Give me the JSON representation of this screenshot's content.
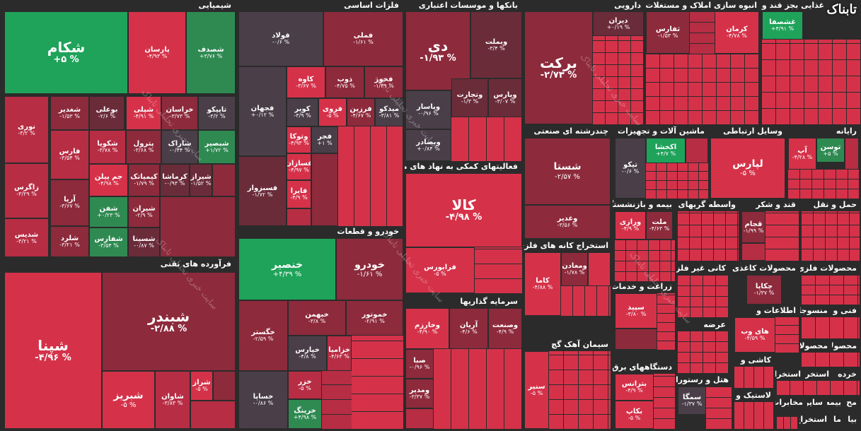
{
  "logo": "تابناک",
  "watermark": "سایت خبری تحلیلی تابناک",
  "sections": {
    "chemical": "شیمیایی",
    "oil": "فرآورده های نفتی",
    "metals": "فلزات اساسی",
    "auto": "خودرو و قطعات",
    "banks": "بانکها و موسسات اعتباری",
    "finance": "فعالیتهای کمکی به نهاد های مالی",
    "invest": "سرمایه گذاریها",
    "pharma": "دارویی",
    "engineering": "چندرشته ای صنعتی",
    "mining": "استخراج کانه های فلزی",
    "cement": "سیمان آهک گچ",
    "realestate": "انبوه سازی املاک و مستغلات",
    "machinery": "ماشین آلات و تجهیزات",
    "sugar": "غذایی بجز قند وشکر",
    "telecom": "وسایل ارتباطی",
    "computer": "رایانه",
    "insurance": "بیمه و بازنشستگی",
    "brokers": "واسطه گریهای مالی",
    "sugar2": "قند و شکر",
    "transport": "حمل و نقل",
    "agri": "زراعت و خدمات",
    "nonmetal": "کانی غیر فلزی",
    "paper": "محصولات کاغذی",
    "metalproducts": "محصولات فلزی",
    "electric": "دستگاههای برق",
    "tech": "فنی و",
    "info": "اطلاعات و",
    "textile": "منسوجات",
    "products": "محصولات",
    "products2": "محصولات",
    "offer": "عرضه",
    "hotel": "هتل و رستوران",
    "tile": "کاشی و",
    "rubber": "لاستیک و",
    "retail": "خرده",
    "ext1": "استخراج",
    "ext2": "استخراج",
    "other1": "سایر",
    "other2": "مخابرات",
    "other3": "مح",
    "other4": "بیمه",
    "other5": "ما",
    "other6": "بیا",
    "other7": "استخراج"
  },
  "tiles": {
    "shekam": {
      "name": "شکام",
      "value": "+۵ %"
    },
    "parsan": {
      "name": "پارسان",
      "value": "-۴/۹۳ %"
    },
    "shasaf": {
      "name": "شصدف",
      "value": "+۳/۷۶ %"
    },
    "nouri": {
      "name": "نوری",
      "value": "-۳/۲ %"
    },
    "shaghadir": {
      "name": "شغدیر",
      "value": "-۱/۵۳ %"
    },
    "buali": {
      "name": "بوعلی",
      "value": "-۲/۶ %"
    },
    "shapli": {
      "name": "شپلی",
      "value": "-۴/۹۱ %"
    },
    "khorasan": {
      "name": "خراسان",
      "value": "-۳/۷۳ %"
    },
    "tapiko": {
      "name": "تاپیکو",
      "value": "-۳/۲ %"
    },
    "fars": {
      "name": "فارس",
      "value": "-۳/۵۴ %"
    },
    "shakouya": {
      "name": "شکویا",
      "value": "-۳/۷۸ %"
    },
    "petrol": {
      "name": "پترول",
      "value": "-۳/۶۸ %"
    },
    "sharak": {
      "name": "شاراک",
      "value": "-۰/۴۴ %"
    },
    "shbesper": {
      "name": "شبصیر",
      "value": "+۱/۷۲ %"
    },
    "zagros": {
      "name": "زاگرس",
      "value": "-۳/۲۹ %"
    },
    "jampilan": {
      "name": "جم پیلن",
      "value": "-۴/۹۸ %"
    },
    "kemiyak": {
      "name": "کیمیاتک",
      "value": "-۱/۷۹ %"
    },
    "kermasha": {
      "name": "کرماشا",
      "value": "-۰/۹۳ %"
    },
    "shiraz": {
      "name": "شیراز",
      "value": "-۱/۵۲ %"
    },
    "arya": {
      "name": "آریا",
      "value": "-۳/۶۷ %"
    },
    "shafan": {
      "name": "شفن",
      "value": "+۰/۲۳ %"
    },
    "shiran": {
      "name": "شیران",
      "value": "-۲/۹ %"
    },
    "shedis": {
      "name": "شدیس",
      "value": "-۳/۲۱ %"
    },
    "sharad": {
      "name": "شلرد",
      "value": "-۳/۲۱ %"
    },
    "shafaras": {
      "name": "شفارس",
      "value": "-۳/۵۴ %"
    },
    "shesina": {
      "name": "شسینا",
      "value": "-۰/۸۷ %"
    },
    "shepna": {
      "name": "شپنا",
      "value": "-۴/۹۶ %"
    },
    "shabandar": {
      "name": "شبندر",
      "value": "-۲/۸۸ %"
    },
    "shabriz": {
      "name": "شبریز",
      "value": "-۵ %"
    },
    "shavan": {
      "name": "شاوان",
      "value": "-۳/۸۳ %"
    },
    "sheraz": {
      "name": "شراز",
      "value": "-۵ %"
    },
    "fouladh": {
      "name": "فولاد",
      "value": "-۰/۶ %"
    },
    "femeli": {
      "name": "فملی",
      "value": "-۱/۶۱ %"
    },
    "fajhan": {
      "name": "فجهان",
      "value": "+۰/۱۲ %"
    },
    "kave": {
      "name": "کاوه",
      "value": "-۳/۶۷ %"
    },
    "zob": {
      "name": "ذوب",
      "value": "-۴/۷۵ %"
    },
    "fekhouz": {
      "name": "فخوز",
      "value": "-۱/۳۹ %"
    },
    "kavir": {
      "name": "کویر",
      "value": "-۳/۹ %"
    },
    "farvi": {
      "name": "فروی",
      "value": "-۵ %"
    },
    "farzin": {
      "name": "فرزین",
      "value": "-۴/۶۷ %"
    },
    "midako": {
      "name": "میدکو",
      "value": "-۳/۸۱ %"
    },
    "vatouka": {
      "name": "وتوکا",
      "value": "-۴/۹۳ %"
    },
    "fajr": {
      "name": "فجر",
      "value": "+۱ %"
    },
    "fasazan": {
      "name": "فسازان",
      "value": "-۴/۹۷ %"
    },
    "fsabzevar": {
      "name": "فسبزوار",
      "value": "-۱/۷۲ %"
    },
    "faira": {
      "name": "فایرا",
      "value": "-۴/۹ %"
    },
    "khanasir": {
      "name": "خنصیر",
      "value": "+۴/۳۹ %"
    },
    "khodro": {
      "name": "خودرو",
      "value": "-۱/۶۱ %"
    },
    "khgostar": {
      "name": "خگستر",
      "value": "-۲/۵۹ %"
    },
    "khbahman": {
      "name": "خبهمن",
      "value": "-۳/۸ %"
    },
    "khmotor": {
      "name": "خموتور",
      "value": "-۲/۹۱ %"
    },
    "kharis": {
      "name": "خپارس",
      "value": "-۴/۸ %"
    },
    "khzamiya": {
      "name": "خزامیا",
      "value": "-۴/۶۳ %"
    },
    "khsapa": {
      "name": "خساپا",
      "value": "-۰/۸۶ %"
    },
    "khazar": {
      "name": "خزر",
      "value": "-۵ %"
    },
    "khring": {
      "name": "خرینگ",
      "value": "+۴/۹۸ %"
    },
    "di": {
      "name": "دی",
      "value": "-۱/۹۳ %"
    },
    "vbemellat": {
      "name": "وبملت",
      "value": "-۳/۴ %"
    },
    "vpasar": {
      "name": "وپاسار",
      "value": "-۰/۹۶ %"
    },
    "vtejarat": {
      "name": "وتجارت",
      "value": "-۱/۳ %"
    },
    "vpars": {
      "name": "وپارس",
      "value": "-۳/۰۷ %"
    },
    "vbesadar": {
      "name": "وبصادر",
      "value": "+۰/۸۴ %"
    },
    "kala": {
      "name": "کالا",
      "value": "-۴/۹۸ %"
    },
    "farabourse": {
      "name": "فرابورس",
      "value": "-۵ %"
    },
    "vkharazm": {
      "name": "وخارزم",
      "value": "-۴/۹۰ %"
    },
    "arian": {
      "name": "آریان",
      "value": "-۴/۶ %"
    },
    "vsanat": {
      "name": "وصنعت",
      "value": "-۴/۹ %"
    },
    "sba": {
      "name": "صبا",
      "value": "-۰/۹۶ %"
    },
    "vamadir": {
      "name": "ومدیر",
      "value": "-۳/۳۷ %"
    },
    "barkat": {
      "name": "برکت",
      "value": "-۲/۷۳ %"
    },
    "diran": {
      "name": "دیران",
      "value": "+۰/۱۹ %"
    },
    "shasta": {
      "name": "شستا",
      "value": "-۲/۵۷ %"
    },
    "vghadir": {
      "name": "وغدیر",
      "value": "-۳/۵۶ %"
    },
    "kama": {
      "name": "کاما",
      "value": "-۴/۸۸ %"
    },
    "vmadan": {
      "name": "ومعادن",
      "value": "-۱/۷۸ %"
    },
    "sanir": {
      "name": "سنیر",
      "value": "-۵ %"
    },
    "safaris": {
      "name": "ثفارس",
      "value": "-۱/۵۳ %"
    },
    "kerman": {
      "name": "کرمان",
      "value": "-۴/۷۸ %"
    },
    "ghshesafa": {
      "name": "غشصفا",
      "value": "+۴/۹۱ %"
    },
    "tiko": {
      "name": "تیکو",
      "value": "-۰/۶ %"
    },
    "akhsha": {
      "name": "اکخشا",
      "value": "+۴/۷ %"
    },
    "lipars": {
      "name": "لپارس",
      "value": "-۵ %"
    },
    "ap": {
      "name": "آپ",
      "value": "-۴/۲۸ %"
    },
    "toosan": {
      "name": "توسن",
      "value": "+۵ %"
    },
    "mellat": {
      "name": "ملت",
      "value": "-۴/۶۳ %"
    },
    "vrazi": {
      "name": "ورازی",
      "value": "-۴/۹ %"
    },
    "ghajam": {
      "name": "قجام",
      "value": "-۱/۹۹ %"
    },
    "sepid": {
      "name": "سپید",
      "value": "-۳/۸۰ %"
    },
    "chakapa": {
      "name": "چکاپا",
      "value": "-۱/۳۷ %"
    },
    "haivab": {
      "name": "های وب",
      "value": "-۴/۵۹ %"
    },
    "betrans": {
      "name": "بترانس",
      "value": "-۴/۹ %"
    },
    "bekap": {
      "name": "بکاپ",
      "value": "-۵ %"
    },
    "semga": {
      "name": "سمگا",
      "value": "-۱/۳۷ %"
    }
  }
}
